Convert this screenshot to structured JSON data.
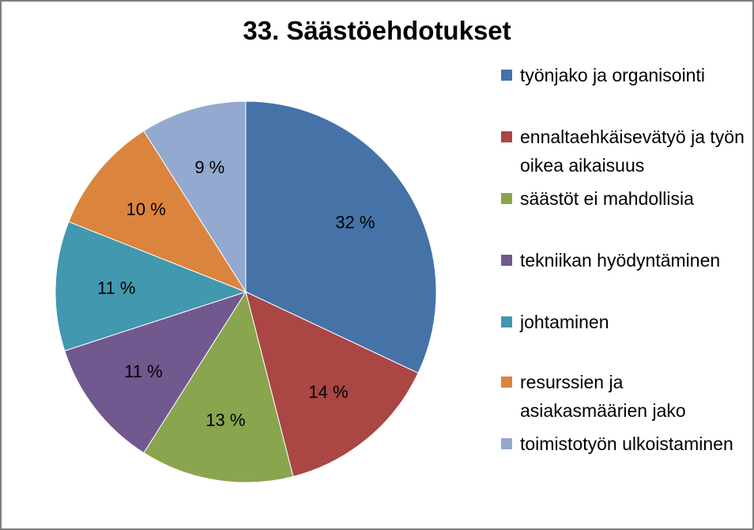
{
  "chart_data": {
    "type": "pie",
    "title": "33. Säästöehdotukset",
    "series": [
      {
        "name": "työnjako ja organisointi",
        "value": 32,
        "label": "32 %",
        "color": "#4572a7"
      },
      {
        "name": "ennaltaehkäisevätyö ja työn oikea aikaisuus",
        "value": 14,
        "label": "14 %",
        "color": "#aa4643"
      },
      {
        "name": "säästöt ei mahdollisia",
        "value": 13,
        "label": "13 %",
        "color": "#89a54e"
      },
      {
        "name": "tekniikan hyödyntäminen",
        "value": 11,
        "label": "11 %",
        "color": "#71588f"
      },
      {
        "name": "johtaminen",
        "value": 11,
        "label": "11 %",
        "color": "#4198af"
      },
      {
        "name": "resurssien ja asiakasmäärien jako",
        "value": 10,
        "label": "10 %",
        "color": "#db843d"
      },
      {
        "name": "toimistotyön ulkoistaminen",
        "value": 9,
        "label": "9 %",
        "color": "#93a9cf"
      }
    ],
    "legend_position": "right"
  }
}
